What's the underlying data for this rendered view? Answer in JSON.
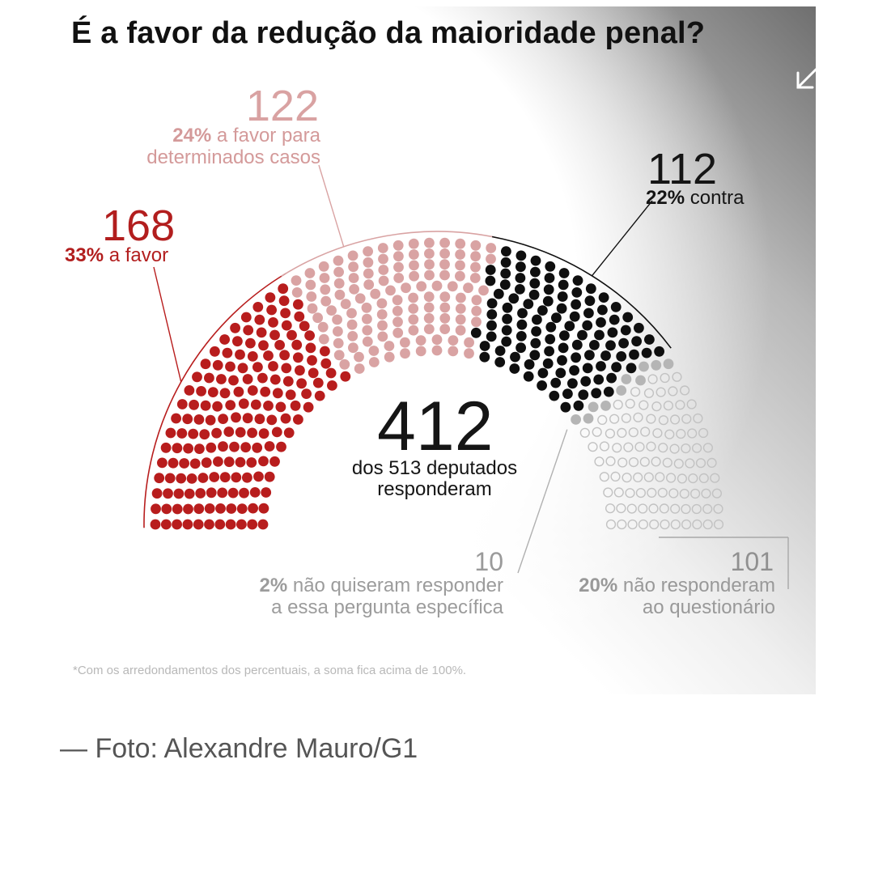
{
  "title": "É a favor da redução da maioridade penal?",
  "colors": {
    "favor": "#b81d1d",
    "casos": "#d9a3a3",
    "contra": "#0f0f0f",
    "nao_quiseram": "#b5b5b5",
    "nao_responderam": "#c2c2c2"
  },
  "labels": {
    "favor": {
      "value": "168",
      "pct": "33%",
      "text": " a favor"
    },
    "casos": {
      "value": "122",
      "pct": "24%",
      "text1": " a favor para",
      "text2": "determinados casos"
    },
    "contra": {
      "value": "112",
      "pct": "22%",
      "text": " contra"
    },
    "center": {
      "value": "412",
      "line1": "dos 513 deputados",
      "line2": "responderam"
    },
    "nao_quiseram": {
      "value": "10",
      "pct": "2%",
      "text1": " não quiseram responder",
      "text2": "a essa pergunta específica"
    },
    "nao_responderam": {
      "value": "101",
      "pct": "20%",
      "text1": " não responderam",
      "text2": "ao questionário"
    }
  },
  "footnote": "*Com os arredondamentos dos percentuais, a soma fica acima de 100%.",
  "caption": "— Foto: Alexandre Mauro/G1",
  "icons": {
    "expand": "expand-arrows-icon"
  },
  "chart_data": {
    "type": "parliament",
    "total": 513,
    "series": [
      {
        "name": "a favor",
        "value": 168,
        "percent": 33
      },
      {
        "name": "a favor para determinados casos",
        "value": 122,
        "percent": 24
      },
      {
        "name": "contra",
        "value": 112,
        "percent": 22
      },
      {
        "name": "não quiseram responder a essa pergunta específica",
        "value": 10,
        "percent": 2
      },
      {
        "name": "não responderam ao questionário",
        "value": 101,
        "percent": 20
      }
    ],
    "responded": 412
  }
}
